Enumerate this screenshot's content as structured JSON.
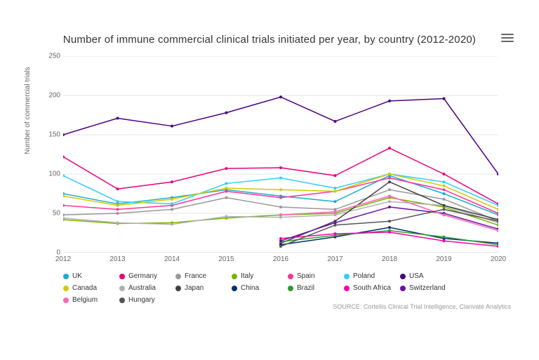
{
  "chart": {
    "type": "line",
    "title": "Number of immune commercial clinical trials initiated per year, by country (2012-2020)",
    "title_fontsize": 15,
    "title_color": "#333333",
    "ylabel": "Number of commercial trials",
    "label_fontsize": 10,
    "label_color": "#666666",
    "background_color": "#ffffff",
    "grid_color": "#e6e6e6",
    "axis_color": "#cccccc",
    "xlim": [
      2012,
      2020
    ],
    "ylim": [
      0,
      250
    ],
    "ytick_step": 50,
    "yticks": [
      0,
      50,
      100,
      150,
      200,
      250
    ],
    "xticks": [
      2012,
      2013,
      2014,
      2015,
      2016,
      2017,
      2018,
      2019,
      2020
    ],
    "line_width": 1.5,
    "marker_style": "circle",
    "marker_size": 4,
    "tick_fontsize": 10,
    "tick_color": "#666666",
    "legend_position": "bottom",
    "legend_fontsize": 10,
    "series": [
      {
        "name": "UK",
        "color": "#1aadce",
        "x": [
          2012,
          2013,
          2014,
          2015,
          2016,
          2017,
          2018,
          2019,
          2020
        ],
        "y": [
          75,
          62,
          70,
          80,
          72,
          65,
          98,
          75,
          48
        ]
      },
      {
        "name": "Germany",
        "color": "#e6007e",
        "x": [
          2012,
          2013,
          2014,
          2015,
          2016,
          2017,
          2018,
          2019,
          2020
        ],
        "y": [
          122,
          81,
          90,
          107,
          108,
          98,
          133,
          100,
          62
        ]
      },
      {
        "name": "France",
        "color": "#999999",
        "x": [
          2012,
          2013,
          2014,
          2015,
          2016,
          2017,
          2018,
          2019,
          2020
        ],
        "y": [
          48,
          50,
          55,
          70,
          58,
          55,
          80,
          68,
          40
        ]
      },
      {
        "name": "Italy",
        "color": "#77b300",
        "x": [
          2012,
          2013,
          2014,
          2015,
          2016,
          2017,
          2018,
          2019,
          2020
        ],
        "y": [
          42,
          37,
          38,
          44,
          48,
          50,
          70,
          58,
          35
        ]
      },
      {
        "name": "Spain",
        "color": "#ff3399",
        "x": [
          2012,
          2013,
          2014,
          2015,
          2016,
          2017,
          2018,
          2019,
          2020
        ],
        "y": [
          60,
          55,
          60,
          78,
          70,
          78,
          95,
          80,
          50
        ]
      },
      {
        "name": "Poland",
        "color": "#33ccff",
        "x": [
          2012,
          2013,
          2014,
          2015,
          2016,
          2017,
          2018,
          2019,
          2020
        ],
        "y": [
          98,
          65,
          62,
          88,
          95,
          82,
          100,
          90,
          60
        ]
      },
      {
        "name": "USA",
        "color": "#4b0082",
        "x": [
          2012,
          2013,
          2014,
          2015,
          2016,
          2017,
          2018,
          2019,
          2020
        ],
        "y": [
          150,
          171,
          161,
          178,
          198,
          167,
          193,
          196,
          100
        ]
      },
      {
        "name": "Canada",
        "color": "#cccc00",
        "x": [
          2012,
          2013,
          2014,
          2015,
          2016,
          2017,
          2018,
          2019,
          2020
        ],
        "y": [
          72,
          60,
          68,
          82,
          80,
          78,
          100,
          85,
          55
        ]
      },
      {
        "name": "Australia",
        "color": "#b0b0b0",
        "x": [
          2012,
          2013,
          2014,
          2015,
          2016,
          2017,
          2018,
          2019,
          2020
        ],
        "y": [
          44,
          38,
          36,
          46,
          45,
          48,
          65,
          60,
          38
        ]
      },
      {
        "name": "Japan",
        "color": "#404040",
        "x": [
          2016,
          2017,
          2018,
          2019,
          2020
        ],
        "y": [
          12,
          40,
          90,
          60,
          42
        ]
      },
      {
        "name": "China",
        "color": "#003366",
        "x": [
          2016,
          2017,
          2018,
          2019,
          2020
        ],
        "y": [
          10,
          20,
          32,
          18,
          12
        ]
      },
      {
        "name": "Brazil",
        "color": "#339933",
        "x": [
          2016,
          2017,
          2018,
          2019,
          2020
        ],
        "y": [
          14,
          22,
          28,
          20,
          10
        ]
      },
      {
        "name": "South Africa",
        "color": "#ff00aa",
        "x": [
          2016,
          2017,
          2018,
          2019,
          2020
        ],
        "y": [
          18,
          24,
          26,
          15,
          8
        ]
      },
      {
        "name": "Switzerland",
        "color": "#6a0dad",
        "x": [
          2016,
          2017,
          2018,
          2019,
          2020
        ],
        "y": [
          15,
          38,
          58,
          50,
          30
        ]
      },
      {
        "name": "Belgium",
        "color": "#ff66b2",
        "x": [
          2016,
          2017,
          2018,
          2019,
          2020
        ],
        "y": [
          48,
          52,
          72,
          48,
          28
        ]
      },
      {
        "name": "Hungary",
        "color": "#555555",
        "x": [
          2016,
          2017,
          2018,
          2019,
          2020
        ],
        "y": [
          8,
          35,
          40,
          55,
          40
        ]
      }
    ],
    "source": "SOURCE: Cortellis Clinical Trial Intelligence, Clarivate Analytics",
    "source_fontsize": 9,
    "source_color": "#999999"
  }
}
